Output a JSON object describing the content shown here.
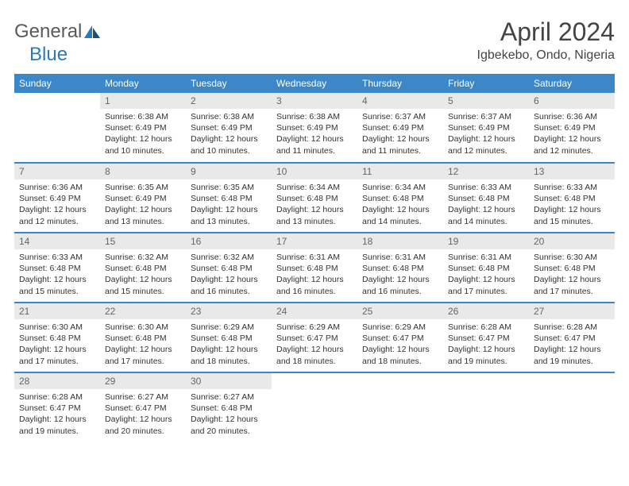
{
  "logo": {
    "text1": "General",
    "text2": "Blue"
  },
  "month_title": "April 2024",
  "location": "Igbekebo, Ondo, Nigeria",
  "colors": {
    "header_bg": "#3b87c8",
    "header_text": "#ffffff",
    "daynum_bg": "#e9e9e9",
    "daynum_text": "#666666",
    "body_text": "#333333",
    "row_border": "#3b87c8",
    "logo_gray": "#5a5a5a",
    "logo_blue": "#2a7ab9"
  },
  "weekdays": [
    "Sunday",
    "Monday",
    "Tuesday",
    "Wednesday",
    "Thursday",
    "Friday",
    "Saturday"
  ],
  "weeks": [
    [
      null,
      {
        "n": "1",
        "sr": "6:38 AM",
        "ss": "6:49 PM",
        "dl": "12 hours and 10 minutes."
      },
      {
        "n": "2",
        "sr": "6:38 AM",
        "ss": "6:49 PM",
        "dl": "12 hours and 10 minutes."
      },
      {
        "n": "3",
        "sr": "6:38 AM",
        "ss": "6:49 PM",
        "dl": "12 hours and 11 minutes."
      },
      {
        "n": "4",
        "sr": "6:37 AM",
        "ss": "6:49 PM",
        "dl": "12 hours and 11 minutes."
      },
      {
        "n": "5",
        "sr": "6:37 AM",
        "ss": "6:49 PM",
        "dl": "12 hours and 12 minutes."
      },
      {
        "n": "6",
        "sr": "6:36 AM",
        "ss": "6:49 PM",
        "dl": "12 hours and 12 minutes."
      }
    ],
    [
      {
        "n": "7",
        "sr": "6:36 AM",
        "ss": "6:49 PM",
        "dl": "12 hours and 12 minutes."
      },
      {
        "n": "8",
        "sr": "6:35 AM",
        "ss": "6:49 PM",
        "dl": "12 hours and 13 minutes."
      },
      {
        "n": "9",
        "sr": "6:35 AM",
        "ss": "6:48 PM",
        "dl": "12 hours and 13 minutes."
      },
      {
        "n": "10",
        "sr": "6:34 AM",
        "ss": "6:48 PM",
        "dl": "12 hours and 13 minutes."
      },
      {
        "n": "11",
        "sr": "6:34 AM",
        "ss": "6:48 PM",
        "dl": "12 hours and 14 minutes."
      },
      {
        "n": "12",
        "sr": "6:33 AM",
        "ss": "6:48 PM",
        "dl": "12 hours and 14 minutes."
      },
      {
        "n": "13",
        "sr": "6:33 AM",
        "ss": "6:48 PM",
        "dl": "12 hours and 15 minutes."
      }
    ],
    [
      {
        "n": "14",
        "sr": "6:33 AM",
        "ss": "6:48 PM",
        "dl": "12 hours and 15 minutes."
      },
      {
        "n": "15",
        "sr": "6:32 AM",
        "ss": "6:48 PM",
        "dl": "12 hours and 15 minutes."
      },
      {
        "n": "16",
        "sr": "6:32 AM",
        "ss": "6:48 PM",
        "dl": "12 hours and 16 minutes."
      },
      {
        "n": "17",
        "sr": "6:31 AM",
        "ss": "6:48 PM",
        "dl": "12 hours and 16 minutes."
      },
      {
        "n": "18",
        "sr": "6:31 AM",
        "ss": "6:48 PM",
        "dl": "12 hours and 16 minutes."
      },
      {
        "n": "19",
        "sr": "6:31 AM",
        "ss": "6:48 PM",
        "dl": "12 hours and 17 minutes."
      },
      {
        "n": "20",
        "sr": "6:30 AM",
        "ss": "6:48 PM",
        "dl": "12 hours and 17 minutes."
      }
    ],
    [
      {
        "n": "21",
        "sr": "6:30 AM",
        "ss": "6:48 PM",
        "dl": "12 hours and 17 minutes."
      },
      {
        "n": "22",
        "sr": "6:30 AM",
        "ss": "6:48 PM",
        "dl": "12 hours and 17 minutes."
      },
      {
        "n": "23",
        "sr": "6:29 AM",
        "ss": "6:48 PM",
        "dl": "12 hours and 18 minutes."
      },
      {
        "n": "24",
        "sr": "6:29 AM",
        "ss": "6:47 PM",
        "dl": "12 hours and 18 minutes."
      },
      {
        "n": "25",
        "sr": "6:29 AM",
        "ss": "6:47 PM",
        "dl": "12 hours and 18 minutes."
      },
      {
        "n": "26",
        "sr": "6:28 AM",
        "ss": "6:47 PM",
        "dl": "12 hours and 19 minutes."
      },
      {
        "n": "27",
        "sr": "6:28 AM",
        "ss": "6:47 PM",
        "dl": "12 hours and 19 minutes."
      }
    ],
    [
      {
        "n": "28",
        "sr": "6:28 AM",
        "ss": "6:47 PM",
        "dl": "12 hours and 19 minutes."
      },
      {
        "n": "29",
        "sr": "6:27 AM",
        "ss": "6:47 PM",
        "dl": "12 hours and 20 minutes."
      },
      {
        "n": "30",
        "sr": "6:27 AM",
        "ss": "6:48 PM",
        "dl": "12 hours and 20 minutes."
      },
      null,
      null,
      null,
      null
    ]
  ],
  "labels": {
    "sunrise": "Sunrise:",
    "sunset": "Sunset:",
    "daylight": "Daylight:"
  }
}
